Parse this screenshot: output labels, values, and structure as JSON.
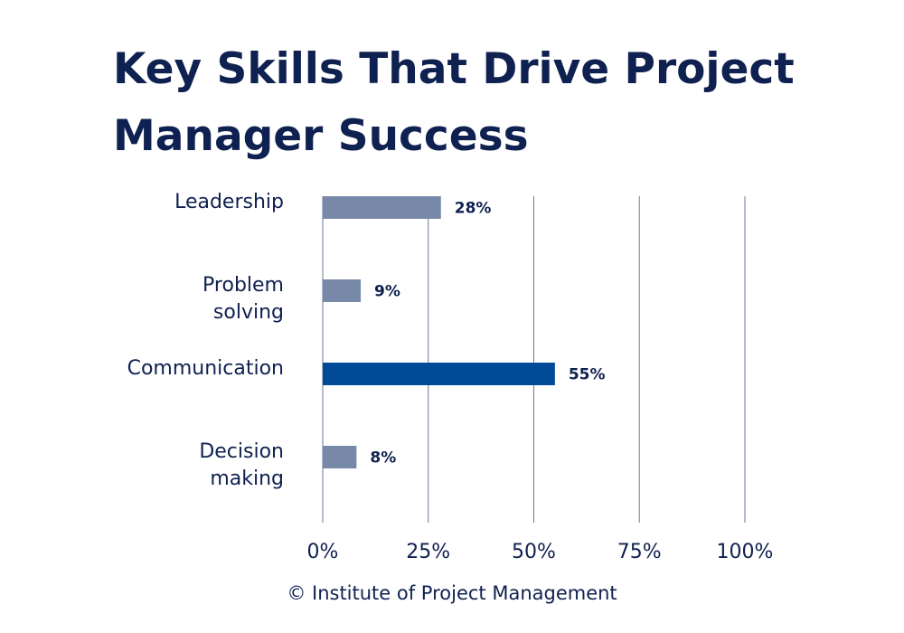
{
  "chart_data": {
    "type": "bar",
    "orientation": "horizontal",
    "title": "Key Skills That Drive Project Manager Success",
    "categories": [
      "Leadership",
      "Problem solving",
      "Communication",
      "Decision making"
    ],
    "values": [
      28,
      9,
      55,
      8
    ],
    "value_labels": [
      "28%",
      "9%",
      "55%",
      "8%"
    ],
    "colors": [
      "#7788a8",
      "#7788a8",
      "#004a97",
      "#7788a8"
    ],
    "xlim": [
      0,
      100
    ],
    "xticks": [
      {
        "value": 0,
        "label": "0%"
      },
      {
        "value": 25,
        "label": "25%"
      },
      {
        "value": 50,
        "label": "50%"
      },
      {
        "value": 75,
        "label": "75%"
      },
      {
        "value": 100,
        "label": "100%"
      }
    ],
    "grid": true,
    "source": "© Institute of Project Management"
  }
}
